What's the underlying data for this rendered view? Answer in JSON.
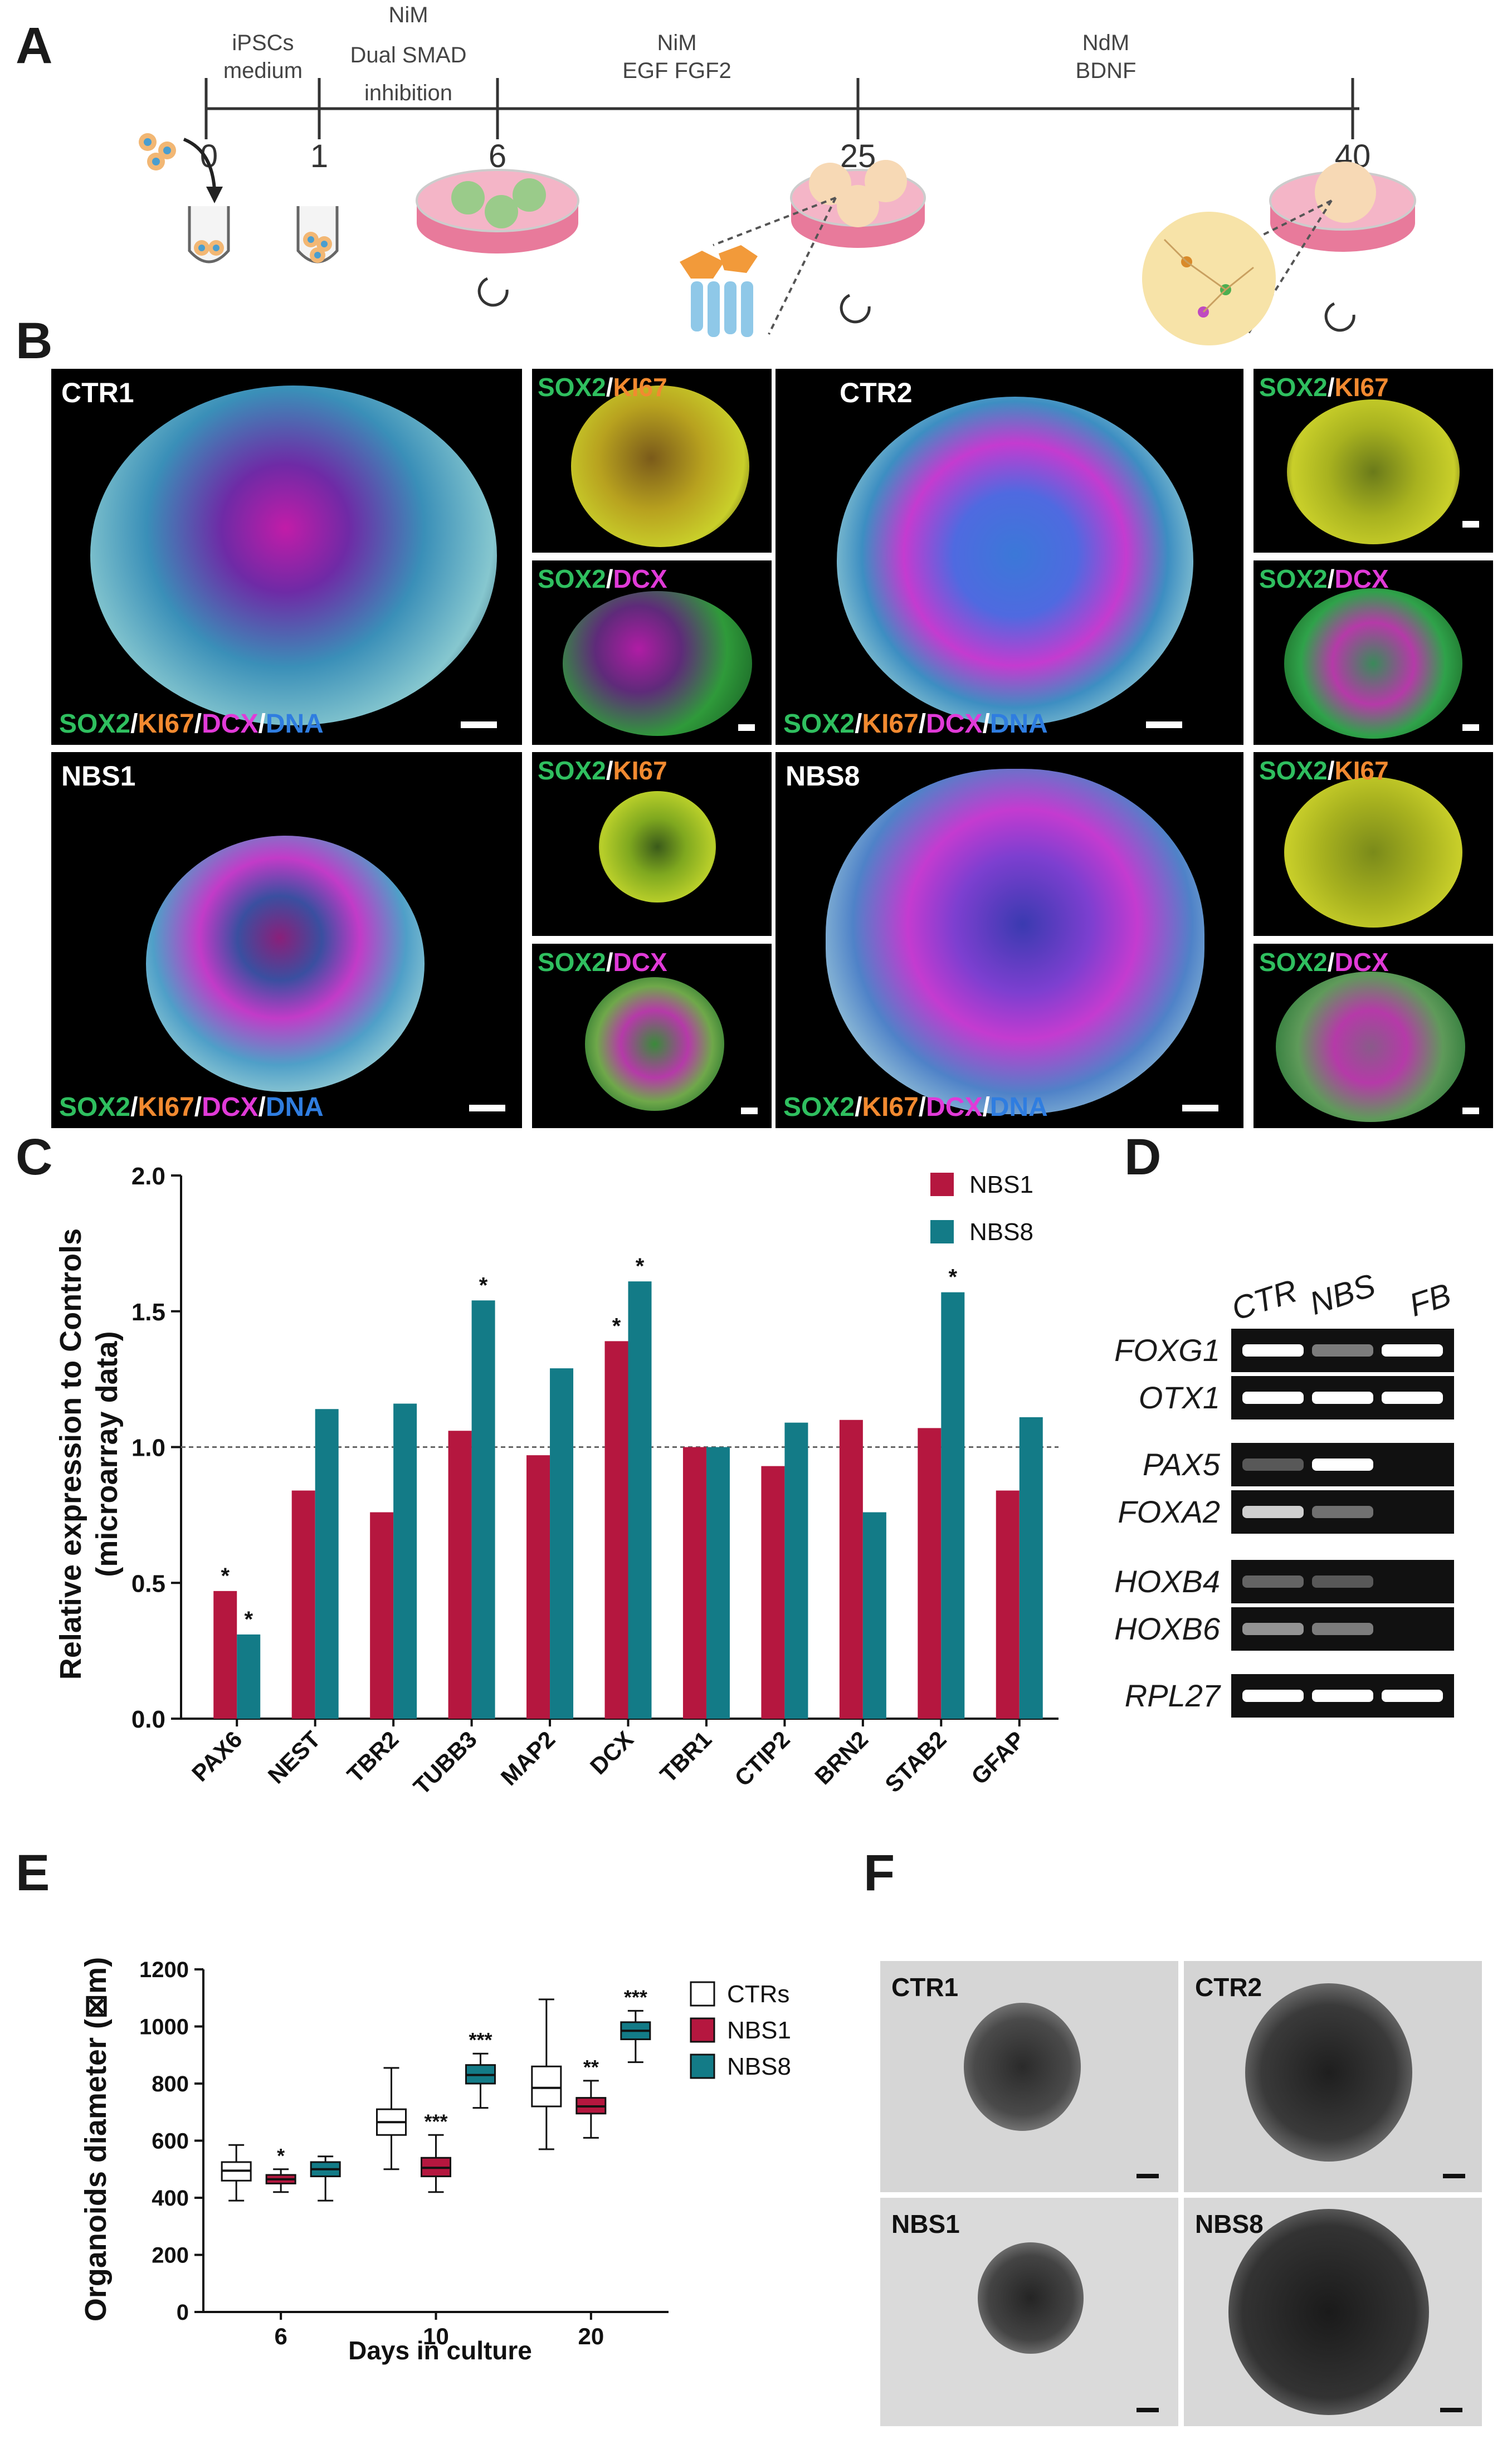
{
  "panels": {
    "a": "A",
    "b": "B",
    "c": "C",
    "d": "D",
    "e": "E",
    "f": "F"
  },
  "timeline": {
    "days": [
      "0",
      "1",
      "6",
      "25",
      "40"
    ],
    "media": [
      {
        "line1": "iPSCs",
        "line2": "medium",
        "line3": ""
      },
      {
        "line1": "NiM",
        "line2": "Dual SMAD",
        "line3": "inhibition"
      },
      {
        "line1": "NiM",
        "line2": "EGF FGF2",
        "line3": ""
      },
      {
        "line1": "NdM",
        "line2": "BDNF",
        "line3": ""
      }
    ]
  },
  "microscopy": {
    "groups": [
      "CTR1",
      "CTR2",
      "NBS1",
      "NBS8"
    ],
    "main_label": {
      "sox2": "SOX2",
      "ki67": "KI67",
      "dcx": "DCX",
      "dna": "DNA",
      "sep": "/"
    },
    "small_labels": {
      "sox2": "SOX2",
      "ki67": "KI67",
      "dcx": "DCX",
      "sep": "/"
    }
  },
  "chart_data": [
    {
      "type": "bar",
      "title": "",
      "ylabel_line1": "Relative expression to Controls",
      "ylabel_line2": "(microarray data)",
      "categories": [
        "PAX6",
        "NEST",
        "TBR2",
        "TUBB3",
        "MAP2",
        "DCX",
        "TBR1",
        "CTIP2",
        "BRN2",
        "STAB2",
        "GFAP"
      ],
      "series": [
        {
          "name": "NBS1",
          "color": "#b5173f",
          "values": [
            0.47,
            0.84,
            0.76,
            1.06,
            0.97,
            1.39,
            1.0,
            0.93,
            1.1,
            1.07,
            0.84
          ]
        },
        {
          "name": "NBS8",
          "color": "#137b87",
          "values": [
            0.31,
            1.14,
            1.16,
            1.54,
            1.29,
            1.61,
            1.0,
            1.09,
            0.76,
            1.57,
            1.11
          ]
        }
      ],
      "significance": [
        {
          "category": "PAX6",
          "series": "NBS1",
          "mark": "*"
        },
        {
          "category": "PAX6",
          "series": "NBS8",
          "mark": "*"
        },
        {
          "category": "TUBB3",
          "series": "NBS8",
          "mark": "*"
        },
        {
          "category": "DCX",
          "series": "NBS1",
          "mark": "*"
        },
        {
          "category": "DCX",
          "series": "NBS8",
          "mark": "*"
        },
        {
          "category": "STAB2",
          "series": "NBS8",
          "mark": "*"
        }
      ],
      "reference_line": 1.0,
      "ylim": [
        0,
        2.0
      ],
      "yticks": [
        "0.0",
        "0.5",
        "1.0",
        "1.5",
        "2.0"
      ],
      "legend_position": "top-right"
    },
    {
      "type": "box",
      "xlabel": "Days in culture",
      "ylabel": "Organoids diameter (⊠m)",
      "categories": [
        "6",
        "10",
        "20"
      ],
      "series": [
        {
          "name": "CTRs",
          "color": "#ffffff",
          "boxes": [
            {
              "min": 390,
              "q1": 460,
              "median": 495,
              "q3": 525,
              "max": 585,
              "sig": ""
            },
            {
              "min": 500,
              "q1": 620,
              "median": 665,
              "q3": 710,
              "max": 855,
              "sig": ""
            },
            {
              "min": 570,
              "q1": 720,
              "median": 785,
              "q3": 860,
              "max": 1095,
              "sig": ""
            }
          ]
        },
        {
          "name": "NBS1",
          "color": "#b5173f",
          "boxes": [
            {
              "min": 420,
              "q1": 450,
              "median": 465,
              "q3": 480,
              "max": 500,
              "sig": "*"
            },
            {
              "min": 420,
              "q1": 475,
              "median": 505,
              "q3": 540,
              "max": 620,
              "sig": "***"
            },
            {
              "min": 610,
              "q1": 695,
              "median": 720,
              "q3": 750,
              "max": 810,
              "sig": "**"
            }
          ]
        },
        {
          "name": "NBS8",
          "color": "#137b87",
          "boxes": [
            {
              "min": 390,
              "q1": 475,
              "median": 500,
              "q3": 525,
              "max": 545,
              "sig": ""
            },
            {
              "min": 715,
              "q1": 800,
              "median": 830,
              "q3": 865,
              "max": 905,
              "sig": "***"
            },
            {
              "min": 875,
              "q1": 955,
              "median": 985,
              "q3": 1015,
              "max": 1055,
              "sig": "***"
            }
          ]
        }
      ],
      "ylim": [
        0,
        1200
      ],
      "yticks": [
        "0",
        "200",
        "400",
        "600",
        "800",
        "1000",
        "1200"
      ],
      "legend_position": "right"
    }
  ],
  "gel": {
    "columns": [
      "CTR",
      "NBS",
      "FB"
    ],
    "genes": [
      "FOXG1",
      "OTX1",
      "PAX5",
      "FOXA2",
      "HOXB4",
      "HOXB6",
      "RPL27"
    ]
  },
  "brightfield": {
    "labels": [
      "CTR1",
      "CTR2",
      "NBS1",
      "NBS8"
    ]
  }
}
